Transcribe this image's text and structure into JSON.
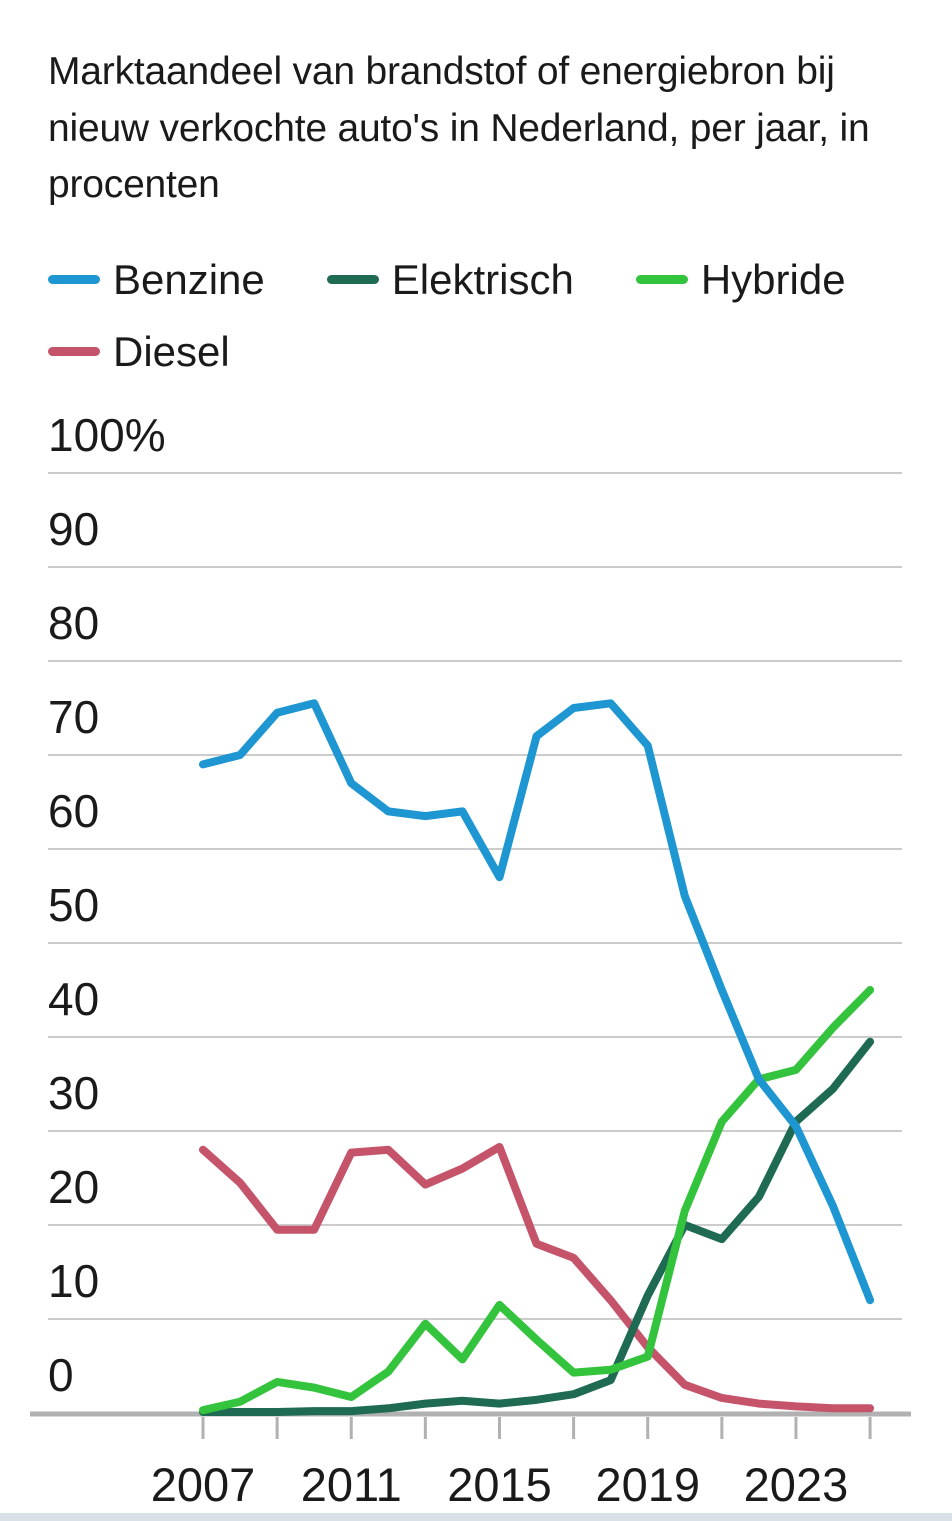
{
  "title": "Marktaandeel van brandstof of energiebron bij nieuw verkochte auto's in Nederland, per jaar, in procenten",
  "colors": {
    "benzine": "#1e96d2",
    "elektrisch": "#1e6a52",
    "hybride": "#33c33c",
    "diesel": "#c5536a",
    "gridline": "#cccccc",
    "axis": "#b1b1b1",
    "text": "#1a1a1a",
    "bottom_bar": "#d9e0e8"
  },
  "chart_data": {
    "type": "line",
    "x": [
      2007,
      2008,
      2009,
      2010,
      2011,
      2012,
      2013,
      2014,
      2015,
      2016,
      2017,
      2018,
      2019,
      2020,
      2021,
      2022,
      2023,
      2024,
      2025
    ],
    "series": [
      {
        "name": "Benzine",
        "color": "#1e96d2",
        "values": [
          69,
          70,
          74.5,
          75.5,
          67,
          64,
          63.5,
          64,
          57,
          72,
          75,
          75.5,
          71,
          55,
          45,
          35.5,
          30.5,
          22,
          12
        ]
      },
      {
        "name": "Elektrisch",
        "color": "#1e6a52",
        "values": [
          0.1,
          0.1,
          0.1,
          0.2,
          0.2,
          0.5,
          1,
          1.3,
          1,
          1.4,
          2,
          3.5,
          12.5,
          20,
          18.5,
          23,
          31,
          34.5,
          39.5
        ]
      },
      {
        "name": "Hybride",
        "color": "#33c33c",
        "values": [
          0.3,
          1.2,
          3.3,
          2.7,
          1.7,
          4.4,
          9.5,
          5.7,
          11.5,
          7.8,
          4.3,
          4.6,
          6,
          21.5,
          31,
          35.5,
          36.5,
          41,
          45
        ]
      },
      {
        "name": "Diesel",
        "color": "#c5536a",
        "values": [
          28,
          24.5,
          19.5,
          19.5,
          27.7,
          28,
          24.3,
          26,
          28.3,
          18,
          16.5,
          12,
          7,
          3,
          1.6,
          1,
          0.7,
          0.5,
          0.5
        ]
      }
    ],
    "title": "Marktaandeel van brandstof of energiebron bij nieuw verkochte auto's in Nederland, per jaar, in procenten",
    "xlabel": "",
    "ylabel": "",
    "ylim": [
      0,
      100
    ],
    "y_ticks": [
      0,
      10,
      20,
      30,
      40,
      50,
      60,
      70,
      80,
      90,
      100
    ],
    "y_top_tick_label": "100%",
    "x_tick_labels": [
      2007,
      2011,
      2015,
      2019,
      2023
    ],
    "x_minor_ticks": [
      2007,
      2009,
      2011,
      2013,
      2015,
      2017,
      2019,
      2021,
      2023,
      2025
    ],
    "grid": true,
    "legend_position": "top"
  }
}
